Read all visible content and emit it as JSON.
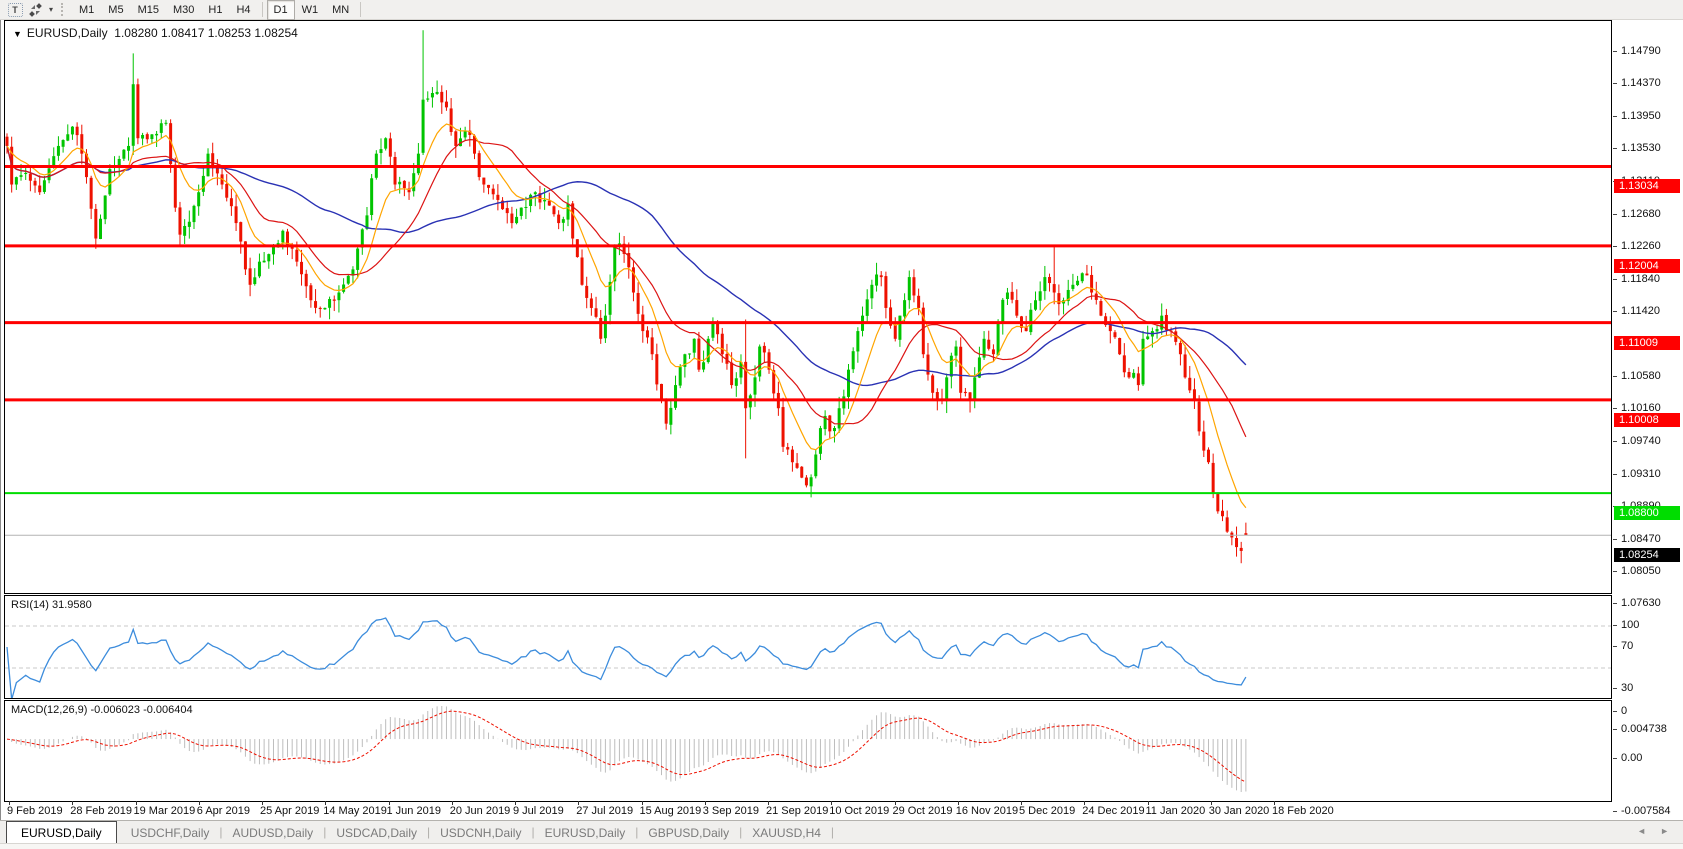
{
  "toolbar": {
    "text_tool": "T",
    "timeframes": [
      "M1",
      "M5",
      "M15",
      "M30",
      "H1",
      "H4",
      "D1",
      "W1",
      "MN"
    ],
    "active_timeframe": "D1"
  },
  "chart": {
    "title_symbol": "EURUSD,Daily",
    "title_ohlc": "1.08280 1.08417 1.08253 1.08254",
    "dropdown_glyph": "▼"
  },
  "indicators": {
    "rsi": {
      "label": "RSI(14) 31.9580",
      "current": 31.958
    },
    "macd": {
      "label": "MACD(12,26,9) -0.006023 -0.006404",
      "current_macd": -0.006023,
      "current_signal": -0.006404
    }
  },
  "tabs": [
    {
      "label": "EURUSD,Daily",
      "active": true
    },
    {
      "label": "USDCHF,Daily",
      "active": false
    },
    {
      "label": "AUDUSD,Daily",
      "active": false
    },
    {
      "label": "USDCAD,Daily",
      "active": false
    },
    {
      "label": "USDCNH,Daily",
      "active": false
    },
    {
      "label": "EURUSD,Daily",
      "active": false
    },
    {
      "label": "GBPUSD,Daily",
      "active": false
    },
    {
      "label": "XAUUSD,H4",
      "active": false
    }
  ],
  "scroll_arrows": {
    "left": "◄",
    "right": "►"
  },
  "colors": {
    "bull": "#00C400",
    "bear": "#EE1100",
    "ma_fast": "#FFA500",
    "ma_mid": "#DC1414",
    "ma_slow": "#2A32B4",
    "rsi_line": "#3C8CDC",
    "rsi_level_dash": "#C8C8C8",
    "macd_hist": "#BDBDBD",
    "macd_signal": "#EE1100",
    "hline_red": "#FF0000",
    "hline_green": "#00DD00",
    "current_price_line": "#B4B4B4",
    "current_price_label_bg": "#000000"
  },
  "chart_data": {
    "type": "candlestick",
    "symbol": "EURUSD",
    "period": "Daily",
    "last_bar": {
      "open": 1.0828,
      "high": 1.08417,
      "low": 1.08253,
      "close": 1.08254
    },
    "bar_count": 266,
    "price_axis_ticks": [
      "1.14790",
      "1.14370",
      "1.13950",
      "1.13530",
      "1.13110",
      "1.12680",
      "1.12260",
      "1.11840",
      "1.11420",
      "1.10580",
      "1.10160",
      "1.09740",
      "1.09310",
      "1.08890",
      "1.08470",
      "1.08050",
      "1.07630"
    ],
    "horizontal_lines": [
      {
        "price": 1.13034,
        "label": "1.13034",
        "color": "#FF0000",
        "width": 3
      },
      {
        "price": 1.12004,
        "label": "1.12004",
        "color": "#FF0000",
        "width": 3
      },
      {
        "price": 1.11009,
        "label": "1.11009",
        "color": "#FF0000",
        "width": 3
      },
      {
        "price": 1.10008,
        "label": "1.10008",
        "color": "#FF0000",
        "width": 3
      },
      {
        "price": 1.088,
        "label": "1.08800",
        "color": "#00DD00",
        "width": 2
      }
    ],
    "current_price": {
      "price": 1.08254,
      "label": "1.08254"
    },
    "x_labels": [
      "9 Feb 2019",
      "28 Feb 2019",
      "19 Mar 2019",
      "6 Apr 2019",
      "25 Apr 2019",
      "14 May 2019",
      "1 Jun 2019",
      "20 Jun 2019",
      "9 Jul 2019",
      "27 Jul 2019",
      "15 Aug 2019",
      "3 Sep 2019",
      "21 Sep 2019",
      "10 Oct 2019",
      "29 Oct 2019",
      "16 Nov 2019",
      "5 Dec 2019",
      "24 Dec 2019",
      "11 Jan 2020",
      "30 Jan 2020",
      "18 Feb 2020"
    ],
    "rsi_axis_ticks": [
      "100",
      "70",
      "30",
      "0"
    ],
    "rsi_levels": [
      70,
      30
    ],
    "macd_axis_ticks": [
      "0.004738",
      "0.00",
      "-0.007584"
    ],
    "macd_range": {
      "max": 0.004738,
      "min": -0.007584
    },
    "moving_averages": [
      {
        "kind": "ema",
        "period": 10,
        "color": "#FFA500"
      },
      {
        "kind": "sma",
        "period": 20,
        "color": "#DC1414"
      },
      {
        "kind": "sma",
        "period": 50,
        "color": "#2A32B4"
      }
    ],
    "anchors": [
      [
        0,
        1.133
      ],
      [
        1,
        1.128
      ],
      [
        4,
        1.1295
      ],
      [
        7,
        1.127
      ],
      [
        11,
        1.133
      ],
      [
        14,
        1.1355
      ],
      [
        16,
        1.132
      ],
      [
        19,
        1.121
      ],
      [
        22,
        1.13
      ],
      [
        26,
        1.133
      ],
      [
        27,
        1.141
      ],
      [
        28,
        1.134
      ],
      [
        31,
        1.1345
      ],
      [
        34,
        1.136
      ],
      [
        36,
        1.125
      ],
      [
        37,
        1.1215
      ],
      [
        41,
        1.127
      ],
      [
        43,
        1.132
      ],
      [
        46,
        1.128
      ],
      [
        49,
        1.123
      ],
      [
        52,
        1.115
      ],
      [
        54,
        1.118
      ],
      [
        57,
        1.12
      ],
      [
        59,
        1.122
      ],
      [
        62,
        1.118
      ],
      [
        65,
        1.113
      ],
      [
        68,
        1.112
      ],
      [
        71,
        1.114
      ],
      [
        74,
        1.117
      ],
      [
        77,
        1.124
      ],
      [
        79,
        1.132
      ],
      [
        81,
        1.134
      ],
      [
        83,
        1.128
      ],
      [
        86,
        1.127
      ],
      [
        88,
        1.132
      ],
      [
        89,
        1.139
      ],
      [
        92,
        1.14
      ],
      [
        94,
        1.138
      ],
      [
        96,
        1.133
      ],
      [
        98,
        1.135
      ],
      [
        100,
        1.132
      ],
      [
        102,
        1.128
      ],
      [
        105,
        1.126
      ],
      [
        108,
        1.123
      ],
      [
        110,
        1.125
      ],
      [
        113,
        1.127
      ],
      [
        115,
        1.126
      ],
      [
        118,
        1.123
      ],
      [
        120,
        1.1255
      ],
      [
        121,
        1.121
      ],
      [
        123,
        1.115
      ],
      [
        125,
        1.112
      ],
      [
        127,
        1.108
      ],
      [
        128,
        1.111
      ],
      [
        130,
        1.12
      ],
      [
        132,
        1.119
      ],
      [
        134,
        1.114
      ],
      [
        136,
        1.109
      ],
      [
        138,
        1.106
      ],
      [
        140,
        1.1
      ],
      [
        141,
        1.097
      ],
      [
        143,
        1.102
      ],
      [
        145,
        1.106
      ],
      [
        147,
        1.108
      ],
      [
        148,
        1.104
      ],
      [
        150,
        1.108
      ],
      [
        151,
        1.11
      ],
      [
        153,
        1.106
      ],
      [
        155,
        1.102
      ],
      [
        157,
        1.105
      ],
      [
        158,
        1.099
      ],
      [
        160,
        1.103
      ],
      [
        161,
        1.107
      ],
      [
        163,
        1.104
      ],
      [
        165,
        1.099
      ],
      [
        166,
        1.094
      ],
      [
        168,
        1.092
      ],
      [
        170,
        1.09
      ],
      [
        171,
        1.089
      ],
      [
        173,
        1.093
      ],
      [
        175,
        1.098
      ],
      [
        176,
        1.096
      ],
      [
        178,
        1.099
      ],
      [
        180,
        1.104
      ],
      [
        182,
        1.109
      ],
      [
        183,
        1.111
      ],
      [
        185,
        1.115
      ],
      [
        187,
        1.116
      ],
      [
        188,
        1.112
      ],
      [
        190,
        1.108
      ],
      [
        191,
        1.111
      ],
      [
        193,
        1.116
      ],
      [
        195,
        1.112
      ],
      [
        196,
        1.106
      ],
      [
        198,
        1.101
      ],
      [
        200,
        1.1
      ],
      [
        201,
        1.103
      ],
      [
        203,
        1.107
      ],
      [
        204,
        1.101
      ],
      [
        206,
        1.1
      ],
      [
        207,
        1.103
      ],
      [
        209,
        1.108
      ],
      [
        211,
        1.106
      ],
      [
        212,
        1.11
      ],
      [
        214,
        1.114
      ],
      [
        216,
        1.111
      ],
      [
        218,
        1.109
      ],
      [
        220,
        1.113
      ],
      [
        222,
        1.116
      ],
      [
        224,
        1.114
      ],
      [
        226,
        1.113
      ],
      [
        228,
        1.115
      ],
      [
        230,
        1.1165
      ],
      [
        232,
        1.114
      ],
      [
        234,
        1.111
      ],
      [
        236,
        1.109
      ],
      [
        238,
        1.106
      ],
      [
        240,
        1.103
      ],
      [
        242,
        1.102
      ],
      [
        243,
        1.108
      ],
      [
        245,
        1.109
      ],
      [
        247,
        1.111
      ],
      [
        249,
        1.109
      ],
      [
        251,
        1.106
      ],
      [
        252,
        1.103
      ],
      [
        254,
        1.1
      ],
      [
        255,
        1.096
      ],
      [
        257,
        1.092
      ],
      [
        258,
        1.088
      ],
      [
        260,
        1.085
      ],
      [
        261,
        1.083
      ],
      [
        263,
        1.081
      ],
      [
        264,
        1.0805
      ],
      [
        265,
        1.08254
      ]
    ],
    "spikes": [
      {
        "i": 27,
        "high": 1.145
      },
      {
        "i": 89,
        "high": 1.148
      },
      {
        "i": 158,
        "high": 1.1105,
        "low": 1.0925
      },
      {
        "i": 224,
        "high": 1.12
      }
    ]
  }
}
